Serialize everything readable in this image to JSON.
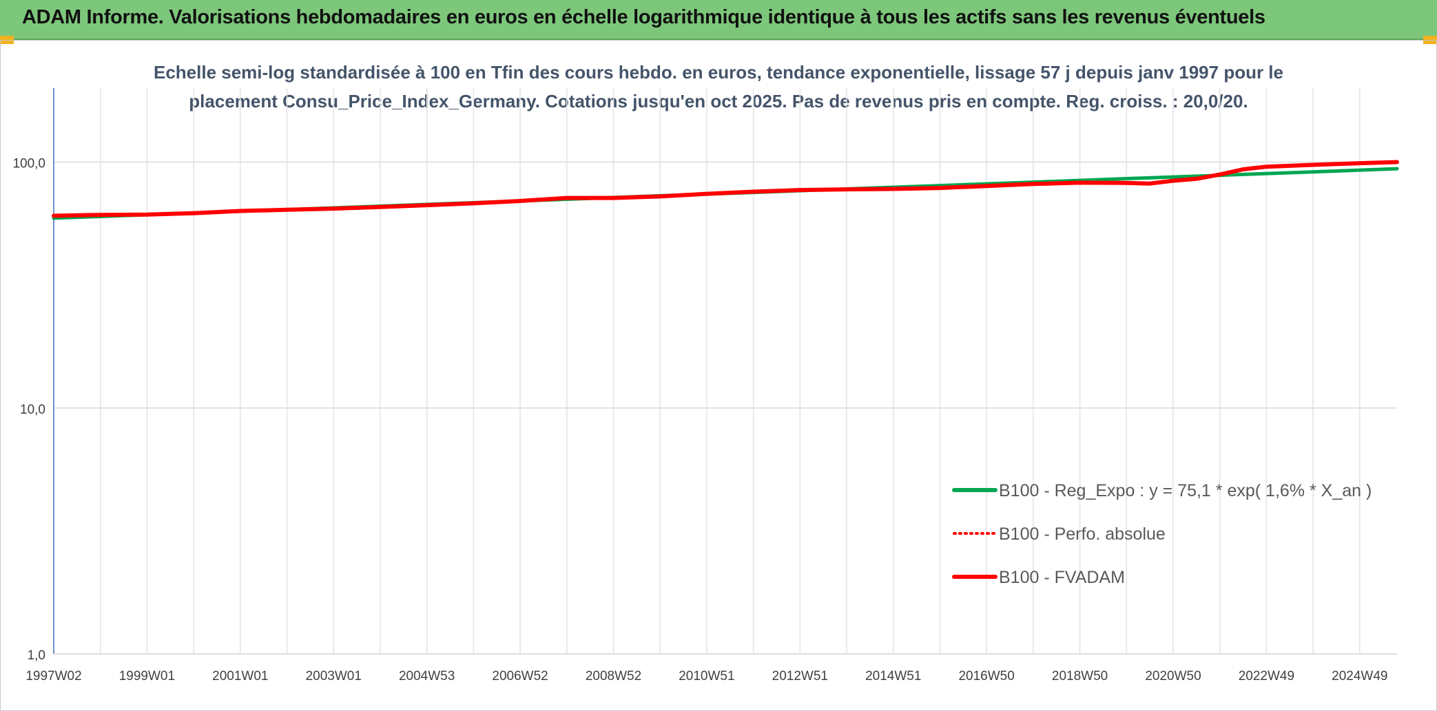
{
  "header": {
    "title": "ADAM Informe. Valorisations hebdomadaires en euros en échelle logarithmique identique à tous les actifs sans les revenus éventuels"
  },
  "colors": {
    "banner": "#7dc77b",
    "accent_corner": "#f2b21c",
    "series_trend": "#00a651",
    "series_absolute": "#ff0000",
    "series_fvadam": "#ff0000"
  },
  "chart_data": {
    "type": "line",
    "title_line1": "Echelle semi-log standardisée à 100 en Tfin des cours hebdo. en euros, tendance exponentielle, lissage 57 j depuis janv 1997 pour le",
    "title_line2": "placement Consu_Price_Index_Germany. Cotations jusqu'en oct 2025. Pas de revenus pris en compte. Reg. croiss. : 20,0/20.",
    "y_scale": "log",
    "ylim": [
      1,
      200
    ],
    "y_ticks": [
      {
        "value": 1,
        "label": "1,0"
      },
      {
        "value": 10,
        "label": "10,0"
      },
      {
        "value": 100,
        "label": "100,0"
      }
    ],
    "x_tick_labels": [
      "1997W02",
      "1999W01",
      "2001W01",
      "2003W01",
      "2004W53",
      "2006W52",
      "2008W52",
      "2010W51",
      "2012W51",
      "2014W51",
      "2016W50",
      "2018W50",
      "2020W50",
      "2022W49",
      "2024W49"
    ],
    "xlim": [
      1997.0,
      2025.8
    ],
    "grid": true,
    "legend_position": "bottom-right",
    "series": [
      {
        "name": "B100 - Reg_Expo : y = 75,1 * exp( 1,6% *  X_an )",
        "style": "solid",
        "color": "#00a651",
        "x": [
          1997.0,
          1998.0,
          2000.0,
          2002.0,
          2004.0,
          2006.0,
          2008.0,
          2010.0,
          2012.0,
          2014.0,
          2016.0,
          2018.0,
          2020.0,
          2022.0,
          2024.0,
          2025.8
        ],
        "y": [
          59.2,
          60.1,
          62.1,
          64.1,
          66.2,
          68.4,
          70.6,
          73.0,
          75.3,
          77.8,
          80.3,
          82.9,
          85.7,
          88.4,
          91.3,
          94.0
        ]
      },
      {
        "name": "B100 - Perfo. absolue",
        "style": "dotted",
        "color": "#ff0000",
        "x": [
          1997.0,
          1998.0,
          1999.0,
          2000.0,
          2001.0,
          2002.0,
          2003.0,
          2004.0,
          2005.0,
          2006.0,
          2007.0,
          2008.0,
          2009.0,
          2010.0,
          2011.0,
          2012.0,
          2013.0,
          2014.0,
          2015.0,
          2016.0,
          2017.0,
          2018.0,
          2019.0,
          2020.0,
          2020.5,
          2021.0,
          2021.5,
          2022.0,
          2022.5,
          2023.0,
          2024.0,
          2025.0,
          2025.8
        ],
        "y": [
          60.5,
          61.0,
          61.2,
          62.0,
          63.3,
          64.0,
          64.7,
          65.7,
          66.8,
          68.0,
          69.5,
          71.5,
          71.5,
          72.5,
          74.3,
          75.8,
          77.0,
          77.5,
          77.8,
          78.5,
          80.0,
          81.5,
          82.5,
          82.3,
          81.8,
          84.0,
          85.5,
          89.0,
          93.5,
          95.8,
          97.5,
          99.0,
          100.0
        ]
      },
      {
        "name": "B100 - FVADAM",
        "style": "solid",
        "color": "#ff0000",
        "x": [
          1997.0,
          1998.0,
          1999.0,
          2000.0,
          2001.0,
          2002.0,
          2003.0,
          2004.0,
          2005.0,
          2006.0,
          2007.0,
          2008.0,
          2009.0,
          2010.0,
          2011.0,
          2012.0,
          2013.0,
          2014.0,
          2015.0,
          2016.0,
          2017.0,
          2018.0,
          2019.0,
          2020.0,
          2020.5,
          2021.0,
          2021.5,
          2022.0,
          2022.5,
          2023.0,
          2024.0,
          2025.0,
          2025.8
        ],
        "y": [
          60.5,
          61.0,
          61.2,
          62.0,
          63.3,
          64.0,
          64.7,
          65.7,
          66.8,
          68.0,
          69.5,
          71.5,
          71.5,
          72.5,
          74.3,
          75.8,
          77.0,
          77.5,
          77.8,
          78.5,
          80.0,
          81.5,
          82.5,
          82.3,
          81.8,
          84.0,
          85.5,
          89.0,
          93.5,
          95.8,
          97.5,
          99.0,
          100.0
        ]
      }
    ]
  }
}
